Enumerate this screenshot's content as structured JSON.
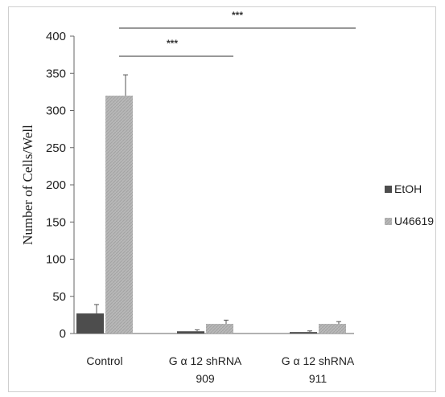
{
  "chart_data": {
    "type": "bar",
    "title": "",
    "xlabel": "",
    "ylabel": "Number of Cells/Well",
    "ylim": [
      0,
      400
    ],
    "yticks": [
      0,
      50,
      100,
      150,
      200,
      250,
      300,
      350,
      400
    ],
    "categories": [
      [
        "Control"
      ],
      [
        "G α 12 shRNA",
        "909"
      ],
      [
        "G α 12 shRNA",
        "911"
      ]
    ],
    "series": [
      {
        "name": "EtOH",
        "color": "#4d4d4d",
        "values": [
          27,
          3,
          2
        ],
        "errors": [
          12,
          2,
          1.5
        ]
      },
      {
        "name": "U46619",
        "color": "#b3b3b3",
        "values": [
          320,
          13,
          13
        ],
        "errors": [
          28,
          5,
          3
        ]
      }
    ],
    "legend_position": "right",
    "grid": false,
    "significance": [
      {
        "label": "***",
        "from_category": 0,
        "to_category": 1
      },
      {
        "label": "***",
        "from_category": 0,
        "to_category": 2
      }
    ]
  }
}
